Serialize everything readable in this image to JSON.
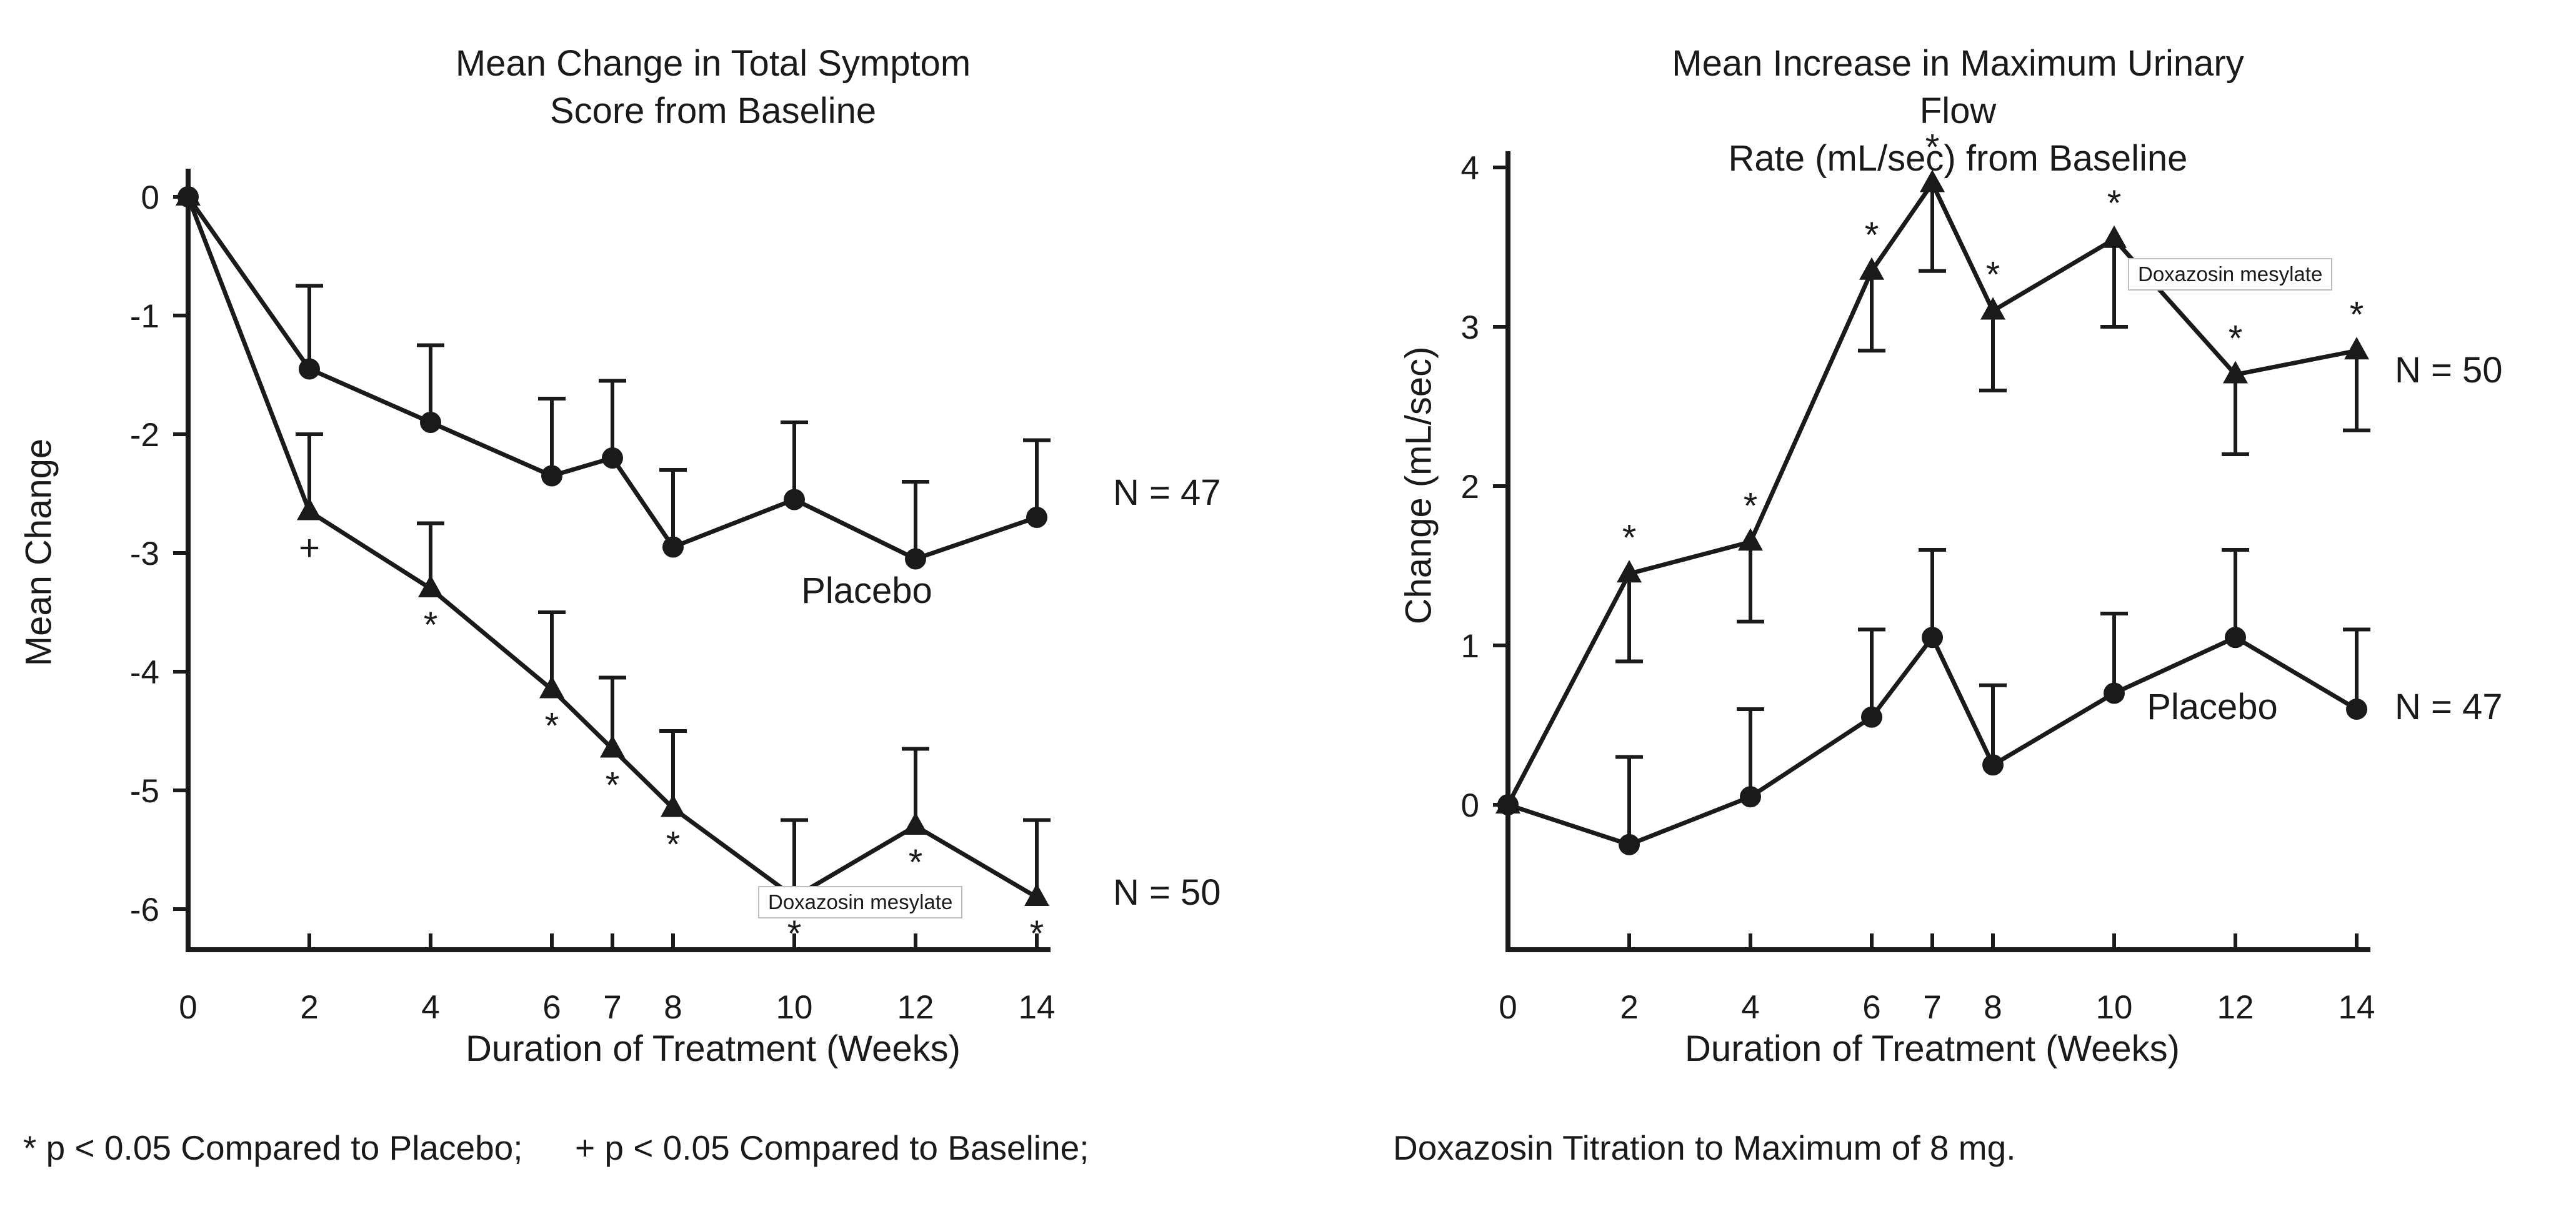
{
  "footer": {
    "note1": "* p < 0.05 Compared to Placebo;",
    "note2": "+ p < 0.05 Compared to Baseline;",
    "note3": "Doxazosin Titration to Maximum of 8 mg."
  },
  "chart_data": [
    {
      "type": "line",
      "title": "Mean Change in Total Symptom\nScore from Baseline",
      "xlabel": "Duration of Treatment (Weeks)",
      "ylabel": "Mean Change",
      "x": [
        0,
        2,
        4,
        6,
        7,
        8,
        10,
        12,
        14
      ],
      "xticks": [
        0,
        2,
        4,
        6,
        7,
        8,
        10,
        12,
        14
      ],
      "yticks": [
        0,
        -1,
        -2,
        -3,
        -4,
        -5,
        -6
      ],
      "xlim": [
        0,
        14.2
      ],
      "ylim": [
        -6.35,
        0.25
      ],
      "grid": false,
      "series": [
        {
          "name": "Placebo",
          "label": "Placebo",
          "n_label": "N = 47",
          "marker": "circle",
          "values": [
            0,
            -1.45,
            -1.9,
            -2.35,
            -2.2,
            -2.95,
            -2.55,
            -3.05,
            -2.7
          ],
          "err": [
            0,
            0.7,
            0.65,
            0.65,
            0.65,
            0.65,
            0.65,
            0.65,
            0.65
          ],
          "marks": [
            "",
            "",
            "",
            "",
            "",
            "",
            "",
            "",
            ""
          ],
          "mark_pos": "below"
        },
        {
          "name": "Doxazosin mesylate",
          "label": "Doxazosin mesylate",
          "n_label": "N = 50",
          "marker": "triangle",
          "values": [
            0,
            -2.65,
            -3.3,
            -4.15,
            -4.65,
            -5.15,
            -5.9,
            -5.3,
            -5.9
          ],
          "err": [
            0,
            0.65,
            0.55,
            0.65,
            0.6,
            0.65,
            0.65,
            0.65,
            0.65
          ],
          "marks": [
            "",
            "+",
            "*",
            "*",
            "*",
            "*",
            "*",
            "*",
            "*"
          ],
          "mark_pos": "below"
        }
      ]
    },
    {
      "type": "line",
      "title": "Mean Increase in Maximum Urinary Flow\nRate (mL/sec) from Baseline",
      "xlabel": "Duration of Treatment (Weeks)",
      "ylabel": "Change (mL/sec)",
      "x": [
        0,
        2,
        4,
        6,
        7,
        8,
        10,
        12,
        14
      ],
      "xticks": [
        0,
        2,
        4,
        6,
        7,
        8,
        10,
        12,
        14
      ],
      "yticks": [
        0,
        1,
        2,
        3,
        4
      ],
      "xlim": [
        0,
        14.2
      ],
      "ylim": [
        -0.9,
        4.1
      ],
      "grid": false,
      "series": [
        {
          "name": "Placebo",
          "label": "Placebo",
          "n_label": "N = 47",
          "marker": "circle",
          "values": [
            0,
            -0.25,
            0.05,
            0.55,
            1.05,
            0.25,
            0.7,
            1.05,
            0.6
          ],
          "err": [
            0,
            0.55,
            0.55,
            0.55,
            0.55,
            0.5,
            0.5,
            0.55,
            0.5
          ],
          "marks": [
            "",
            "",
            "",
            "",
            "",
            "",
            "",
            "",
            ""
          ],
          "mark_pos": "above"
        },
        {
          "name": "Doxazosin mesylate",
          "label": "Doxazosin mesylate",
          "n_label": "N = 50",
          "marker": "triangle",
          "values": [
            0,
            1.45,
            1.65,
            3.35,
            3.9,
            3.1,
            3.55,
            2.7,
            2.85
          ],
          "err": [
            0,
            -0.55,
            -0.5,
            -0.5,
            -0.55,
            -0.5,
            -0.55,
            -0.5,
            -0.5
          ],
          "marks": [
            "",
            "*",
            "*",
            "*",
            "*",
            "*",
            "*",
            "*",
            "*"
          ],
          "mark_pos": "above"
        }
      ]
    }
  ]
}
